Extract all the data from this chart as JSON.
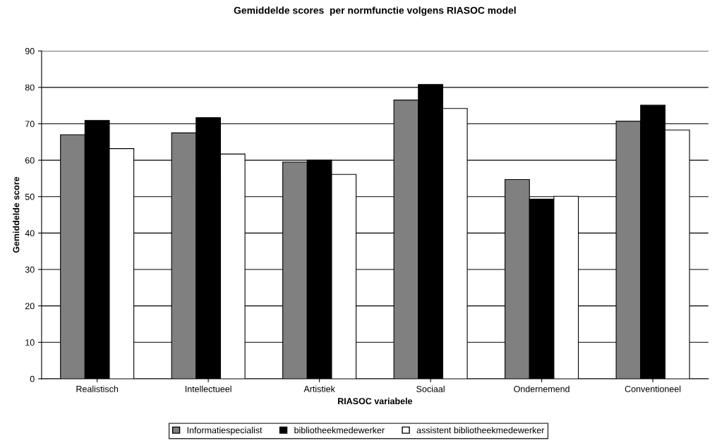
{
  "chart_data": {
    "type": "bar",
    "title": "Gemiddelde scores  per normfunctie volgens RIASOC model",
    "xlabel": "RIASOC variabele",
    "ylabel": "Gemiddelde score",
    "categories": [
      "Realistisch",
      "Intellectueel",
      "Artistiek",
      "Sociaal",
      "Ondernemend",
      "Conventioneel"
    ],
    "series": [
      {
        "name": "Informatiespecialist",
        "color": "#808080",
        "values": [
          67.0,
          67.5,
          59.5,
          76.5,
          54.7,
          70.7
        ]
      },
      {
        "name": "bibliotheekmedewerker",
        "color": "#000000",
        "values": [
          70.9,
          71.7,
          60.0,
          80.8,
          49.3,
          75.1
        ]
      },
      {
        "name": "assistent bibliotheekmedewerker",
        "color": "#ffffff",
        "values": [
          63.2,
          61.7,
          56.1,
          74.2,
          50.1,
          68.3
        ]
      }
    ],
    "ylim": [
      0,
      90
    ],
    "yticks": [
      0,
      10,
      20,
      30,
      40,
      50,
      60,
      70,
      80,
      90
    ],
    "grid": "y",
    "legend": "bottom"
  }
}
